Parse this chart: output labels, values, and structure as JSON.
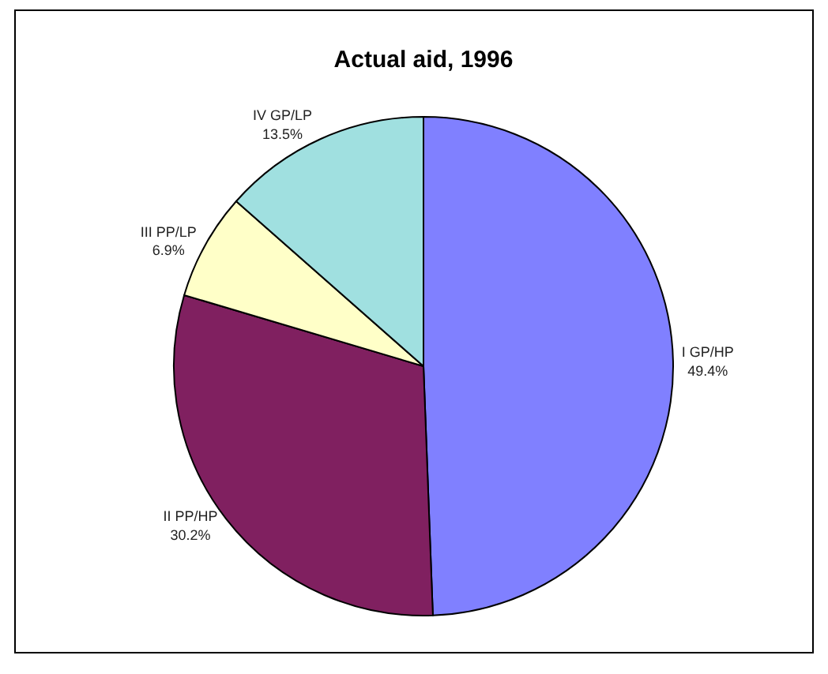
{
  "chart_data": {
    "type": "pie",
    "title": "Actual aid, 1996",
    "categories": [
      "I GP/HP",
      "II PP/HP",
      "III PP/LP",
      "IV GP/LP"
    ],
    "values": [
      49.4,
      30.2,
      6.9,
      13.5
    ],
    "value_labels": [
      "49.4%",
      "30.2%",
      "6.9%",
      "13.5%"
    ],
    "colors": [
      "#8080ff",
      "#802060",
      "#ffffc8",
      "#a0e0e0"
    ],
    "legend": false
  }
}
